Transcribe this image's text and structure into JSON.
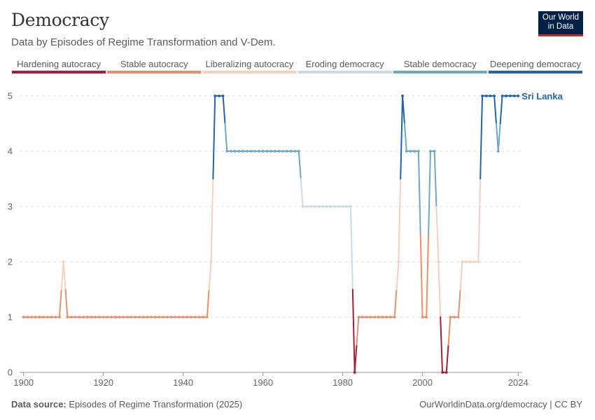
{
  "header": {
    "title": "Democracy",
    "subtitle": "Data by Episodes of Regime Transformation and V-Dem."
  },
  "logo": {
    "line1": "Our World",
    "line2": "in Data"
  },
  "footer": {
    "source_label": "Data source:",
    "source_text": "Episodes of Regime Transformation (2025)",
    "link_text": "OurWorldinData.org/democracy | CC BY"
  },
  "colors": {
    "hardening": "#b01c35",
    "stable_autocracy": "#e8906a",
    "liberalizing": "#f8d0bc",
    "eroding": "#c6dce8",
    "stable_democracy": "#6aa8cc",
    "deepening": "#2166ac"
  },
  "chart_data": {
    "type": "line",
    "title": "Democracy",
    "subtitle": "Data by Episodes of Regime Transformation and V-Dem.",
    "xlabel": "",
    "ylabel": "",
    "xlim": [
      1899,
      2025
    ],
    "ylim": [
      0,
      5
    ],
    "xticks": [
      "1900",
      "1920",
      "1940",
      "1960",
      "1980",
      "2000",
      "2024"
    ],
    "xtick_values": [
      1900,
      1920,
      1940,
      1960,
      1980,
      2000,
      2024
    ],
    "yticks": [
      "0",
      "1",
      "2",
      "3",
      "4",
      "5"
    ],
    "ytick_values": [
      0,
      1,
      2,
      3,
      4,
      5
    ],
    "grid": "horizontal dashed",
    "legend": {
      "position": "top",
      "categories": [
        {
          "label": "Hardening autocracy",
          "value": 0,
          "color": "#b01c35"
        },
        {
          "label": "Stable autocracy",
          "value": 1,
          "color": "#e8906a"
        },
        {
          "label": "Liberalizing autocracy",
          "value": 2,
          "color": "#f8d0bc"
        },
        {
          "label": "Eroding democracy",
          "value": 3,
          "color": "#c6dce8"
        },
        {
          "label": "Stable democracy",
          "value": 4,
          "color": "#6aa8cc"
        },
        {
          "label": "Deepening democracy",
          "value": 5,
          "color": "#2166ac"
        }
      ]
    },
    "series": [
      {
        "name": "Sri Lanka",
        "label_color": "#2166ac",
        "points": [
          [
            1900,
            1
          ],
          [
            1901,
            1
          ],
          [
            1902,
            1
          ],
          [
            1903,
            1
          ],
          [
            1904,
            1
          ],
          [
            1905,
            1
          ],
          [
            1906,
            1
          ],
          [
            1907,
            1
          ],
          [
            1908,
            1
          ],
          [
            1909,
            1
          ],
          [
            1910,
            2
          ],
          [
            1911,
            1
          ],
          [
            1912,
            1
          ],
          [
            1913,
            1
          ],
          [
            1914,
            1
          ],
          [
            1915,
            1
          ],
          [
            1916,
            1
          ],
          [
            1917,
            1
          ],
          [
            1918,
            1
          ],
          [
            1919,
            1
          ],
          [
            1920,
            1
          ],
          [
            1921,
            1
          ],
          [
            1922,
            1
          ],
          [
            1923,
            1
          ],
          [
            1924,
            1
          ],
          [
            1925,
            1
          ],
          [
            1926,
            1
          ],
          [
            1927,
            1
          ],
          [
            1928,
            1
          ],
          [
            1929,
            1
          ],
          [
            1930,
            1
          ],
          [
            1931,
            1
          ],
          [
            1932,
            1
          ],
          [
            1933,
            1
          ],
          [
            1934,
            1
          ],
          [
            1935,
            1
          ],
          [
            1936,
            1
          ],
          [
            1937,
            1
          ],
          [
            1938,
            1
          ],
          [
            1939,
            1
          ],
          [
            1940,
            1
          ],
          [
            1941,
            1
          ],
          [
            1942,
            1
          ],
          [
            1943,
            1
          ],
          [
            1944,
            1
          ],
          [
            1945,
            1
          ],
          [
            1946,
            1
          ],
          [
            1947,
            2
          ],
          [
            1948,
            5
          ],
          [
            1949,
            5
          ],
          [
            1950,
            5
          ],
          [
            1951,
            4
          ],
          [
            1952,
            4
          ],
          [
            1953,
            4
          ],
          [
            1954,
            4
          ],
          [
            1955,
            4
          ],
          [
            1956,
            4
          ],
          [
            1957,
            4
          ],
          [
            1958,
            4
          ],
          [
            1959,
            4
          ],
          [
            1960,
            4
          ],
          [
            1961,
            4
          ],
          [
            1962,
            4
          ],
          [
            1963,
            4
          ],
          [
            1964,
            4
          ],
          [
            1965,
            4
          ],
          [
            1966,
            4
          ],
          [
            1967,
            4
          ],
          [
            1968,
            4
          ],
          [
            1969,
            4
          ],
          [
            1970,
            3
          ],
          [
            1971,
            3
          ],
          [
            1972,
            3
          ],
          [
            1973,
            3
          ],
          [
            1974,
            3
          ],
          [
            1975,
            3
          ],
          [
            1976,
            3
          ],
          [
            1977,
            3
          ],
          [
            1978,
            3
          ],
          [
            1979,
            3
          ],
          [
            1980,
            3
          ],
          [
            1981,
            3
          ],
          [
            1982,
            3
          ],
          [
            1983,
            0
          ],
          [
            1984,
            1
          ],
          [
            1985,
            1
          ],
          [
            1986,
            1
          ],
          [
            1987,
            1
          ],
          [
            1988,
            1
          ],
          [
            1989,
            1
          ],
          [
            1990,
            1
          ],
          [
            1991,
            1
          ],
          [
            1992,
            1
          ],
          [
            1993,
            1
          ],
          [
            1994,
            2
          ],
          [
            1995,
            5
          ],
          [
            1996,
            4
          ],
          [
            1997,
            4
          ],
          [
            1998,
            4
          ],
          [
            1999,
            4
          ],
          [
            2000,
            1
          ],
          [
            2001,
            1
          ],
          [
            2002,
            4
          ],
          [
            2003,
            4
          ],
          [
            2004,
            2
          ],
          [
            2005,
            0
          ],
          [
            2006,
            0
          ],
          [
            2007,
            1
          ],
          [
            2008,
            1
          ],
          [
            2009,
            1
          ],
          [
            2010,
            2
          ],
          [
            2011,
            2
          ],
          [
            2012,
            2
          ],
          [
            2013,
            2
          ],
          [
            2014,
            2
          ],
          [
            2015,
            5
          ],
          [
            2016,
            5
          ],
          [
            2017,
            5
          ],
          [
            2018,
            5
          ],
          [
            2019,
            4
          ],
          [
            2020,
            5
          ],
          [
            2021,
            5
          ],
          [
            2022,
            5
          ],
          [
            2023,
            5
          ],
          [
            2024,
            5
          ]
        ]
      }
    ]
  }
}
